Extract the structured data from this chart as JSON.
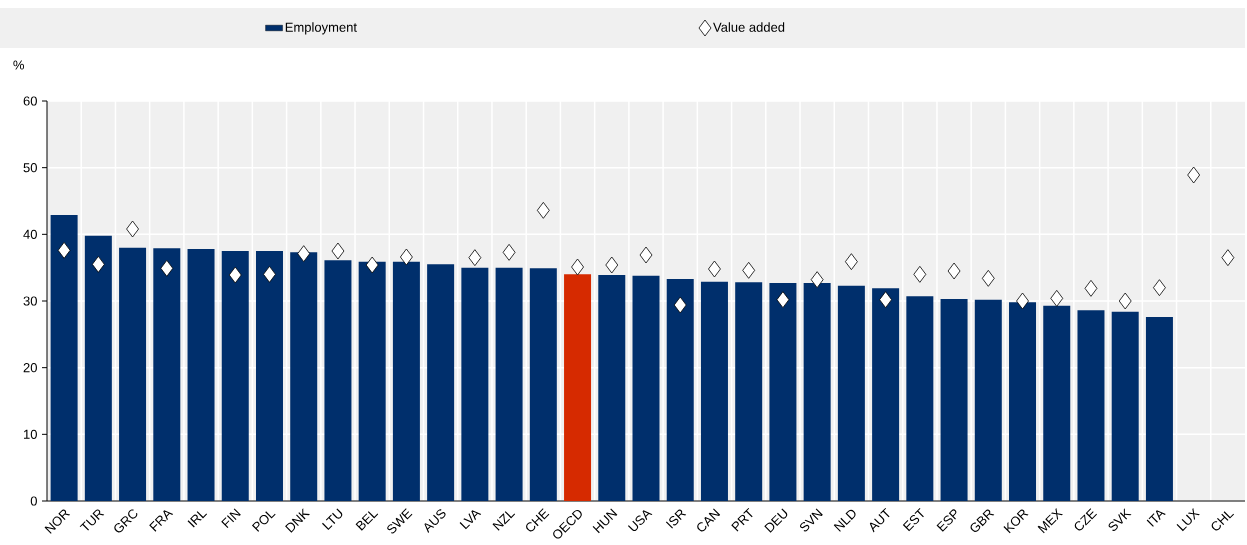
{
  "chart_data": {
    "type": "bar",
    "ylabel": "%",
    "categories": [
      "NOR",
      "TUR",
      "GRC",
      "FRA",
      "IRL",
      "FIN",
      "POL",
      "DNK",
      "LTU",
      "BEL",
      "SWE",
      "AUS",
      "LVA",
      "NZL",
      "CHE",
      "OECD",
      "HUN",
      "USA",
      "ISR",
      "CAN",
      "PRT",
      "DEU",
      "SVN",
      "NLD",
      "AUT",
      "EST",
      "ESP",
      "GBR",
      "KOR",
      "MEX",
      "CZE",
      "SVK",
      "ITA",
      "LUX",
      "CHL"
    ],
    "series": [
      {
        "name": "Employment",
        "color": "#002f6c",
        "colors": [
          "#002f6c",
          "#002f6c",
          "#002f6c",
          "#002f6c",
          "#002f6c",
          "#002f6c",
          "#002f6c",
          "#002f6c",
          "#002f6c",
          "#002f6c",
          "#002f6c",
          "#002f6c",
          "#002f6c",
          "#002f6c",
          "#002f6c",
          "#d62a00",
          "#002f6c",
          "#002f6c",
          "#002f6c",
          "#002f6c",
          "#002f6c",
          "#002f6c",
          "#002f6c",
          "#002f6c",
          "#002f6c",
          "#002f6c",
          "#002f6c",
          "#002f6c",
          "#002f6c",
          "#002f6c",
          "#002f6c",
          "#002f6c",
          "#002f6c",
          "#002f6c",
          "#002f6c"
        ],
        "values": [
          42.9,
          39.8,
          38.0,
          37.9,
          37.8,
          37.5,
          37.5,
          37.3,
          36.1,
          35.9,
          35.9,
          35.5,
          35.0,
          35.0,
          34.9,
          34.0,
          33.9,
          33.8,
          33.3,
          32.9,
          32.8,
          32.7,
          32.7,
          32.3,
          31.9,
          30.7,
          30.3,
          30.2,
          29.8,
          29.3,
          28.6,
          28.4,
          27.6,
          null,
          null
        ]
      },
      {
        "name": "Value added",
        "type": "scatter",
        "color": "#ffffff",
        "values": [
          37.6,
          35.5,
          40.8,
          34.9,
          null,
          33.9,
          34.0,
          37.1,
          37.5,
          35.4,
          36.6,
          null,
          36.5,
          37.3,
          43.6,
          35.1,
          35.4,
          36.9,
          29.4,
          34.8,
          34.6,
          30.2,
          33.2,
          35.9,
          30.2,
          34.0,
          34.5,
          33.4,
          30.0,
          30.4,
          31.9,
          30.0,
          32.0,
          48.9,
          36.5
        ]
      }
    ],
    "ylim": [
      0,
      60
    ],
    "yticks": [
      0,
      10,
      20,
      30,
      40,
      50,
      60
    ],
    "grid": true,
    "legend": "top",
    "marker": "diamond"
  }
}
